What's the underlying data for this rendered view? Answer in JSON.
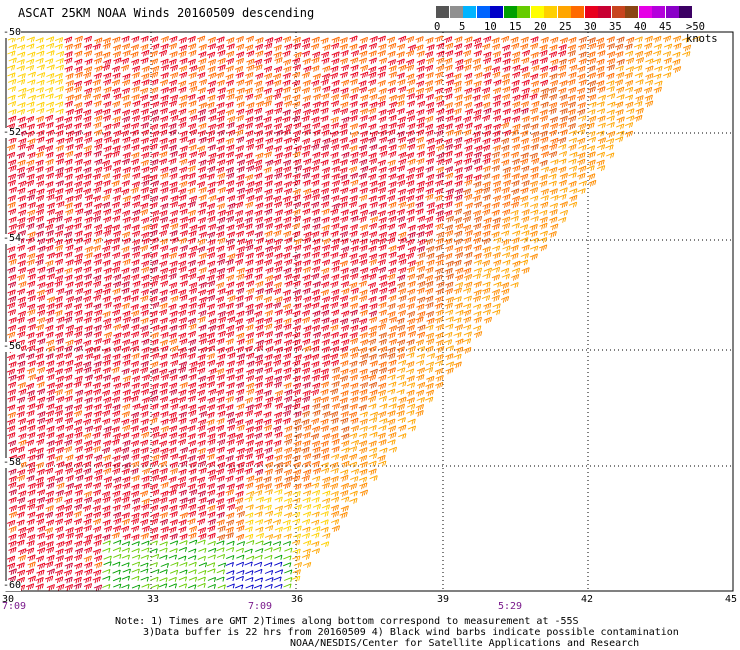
{
  "title": "ASCAT 25KM NOAA Winds 20160509 descending",
  "colorbar": {
    "unit_label": ">50 knots",
    "ticks": [
      "0",
      "5",
      "10",
      "15",
      "20",
      "25",
      "30",
      "35",
      "40",
      "45"
    ],
    "colors": [
      "#555555",
      "#909090",
      "#00b4ff",
      "#0064ff",
      "#0000c8",
      "#00a000",
      "#66cc00",
      "#ffff00",
      "#ffd000",
      "#ffa500",
      "#ff6a00",
      "#e8001e",
      "#c80032",
      "#c8441e",
      "#8b4513",
      "#e600e6",
      "#b400dc",
      "#8a00c8",
      "#3c0064"
    ]
  },
  "map": {
    "lat_labels": [
      "-50",
      "-52",
      "-54",
      "-56",
      "-58",
      "-60"
    ],
    "lon_labels": [
      "30",
      "33",
      "36",
      "39",
      "42",
      "45"
    ],
    "time_labels": [
      "7:09",
      "7:09",
      "5:29"
    ]
  },
  "notes": {
    "line1": "Note: 1) Times are GMT 2)Times along bottom correspond to measurement at -55S",
    "line2": "3)Data buffer is 22 hrs from 20160509 4) Black wind barbs indicate possible contamination",
    "line3": "NOAA/NESDIS/Center for Satellite Applications and Research"
  }
}
